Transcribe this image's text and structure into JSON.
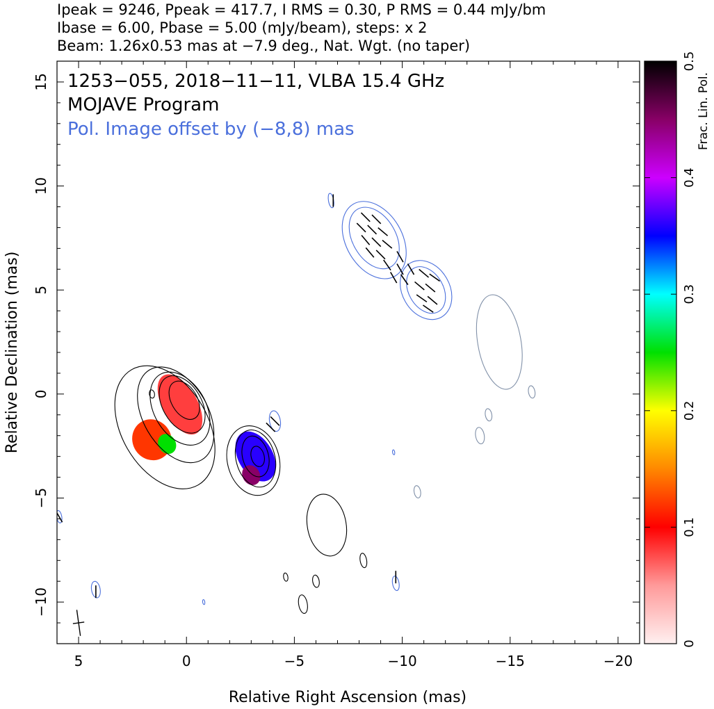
{
  "header": {
    "line1": "Ipeak = 9246, Ppeak = 417.7, I RMS = 0.30, P RMS = 0.44 mJy/bm",
    "line2": "Ibase = 6.00, Pbase = 5.00 (mJy/beam), steps: x 2",
    "line3": "Beam: 1.26x0.53 mas at −7.9 deg., Nat. Wgt. (no taper)"
  },
  "annotations": {
    "source": "1253−055, 2018−11−11, VLBA 15.4 GHz",
    "program": "MOJAVE Program",
    "offset_note": "Pol. Image offset by (−8,8) mas"
  },
  "colors": {
    "stokes_i_contour": "#000000",
    "pol_contour": "#4a6fdc",
    "offset_contour": "#8090a8",
    "offset_note": "#4a6fdc"
  },
  "chart_data": {
    "type": "heatmap",
    "title": "1253−055, 2018−11−11, VLBA 15.4 GHz",
    "xlabel": "Relative Right Ascension (mas)",
    "ylabel": "Relative Declination (mas)",
    "xlim": [
      6,
      -21
    ],
    "ylim": [
      -12,
      16
    ],
    "x_ticks": [
      5,
      0,
      -5,
      -10,
      -15,
      -20
    ],
    "x_tick_labels": [
      "5",
      "0",
      "−5",
      "−10",
      "−15",
      "−20"
    ],
    "y_ticks": [
      15,
      10,
      5,
      0,
      -5,
      -10
    ],
    "y_tick_labels": [
      "15",
      "10",
      "5",
      "0",
      "−5",
      "−10"
    ],
    "colorbar": {
      "label": "Frac. Lin. Pol.",
      "range": [
        0,
        0.5
      ],
      "ticks": [
        0,
        0.1,
        0.2,
        0.3,
        0.4,
        0.5
      ],
      "tick_labels": [
        "0",
        "0.1",
        "0.2",
        "0.3",
        "0.4",
        "0.5"
      ],
      "stops": [
        "#fff0f0",
        "#ff9a9a",
        "#ff0000",
        "#ff8800",
        "#ffff00",
        "#00e000",
        "#00ffff",
        "#0000ff",
        "#cc00ff",
        "#880066",
        "#000000"
      ]
    },
    "stokes_i_core_contours": [
      {
        "x": 0.1,
        "y": -0.3,
        "rx": 0.6,
        "ry": 1.0
      },
      {
        "x": 0.2,
        "y": -0.5,
        "rx": 0.9,
        "ry": 1.5
      },
      {
        "x": 0.3,
        "y": -0.7,
        "rx": 1.2,
        "ry": 1.9
      },
      {
        "x": 0.5,
        "y": -1.0,
        "rx": 1.5,
        "ry": 2.5
      },
      {
        "x": 1.0,
        "y": -1.6,
        "rx": 2.0,
        "ry": 3.2
      }
    ],
    "stokes_i_component_contours": [
      {
        "x": -3.3,
        "y": -3.0,
        "rx": 0.3,
        "ry": 0.5
      },
      {
        "x": -3.2,
        "y": -3.0,
        "rx": 0.6,
        "ry": 1.0
      },
      {
        "x": -3.2,
        "y": -3.1,
        "rx": 0.9,
        "ry": 1.4
      },
      {
        "x": -3.1,
        "y": -3.2,
        "rx": 1.2,
        "ry": 1.7
      }
    ],
    "pol_offset_contours": [
      {
        "x": -8.7,
        "y": 7.5,
        "rx": 1.0,
        "ry": 1.6
      },
      {
        "x": -8.7,
        "y": 7.4,
        "rx": 1.3,
        "ry": 2.0
      },
      {
        "x": -11.1,
        "y": 5.0,
        "rx": 0.8,
        "ry": 1.2
      },
      {
        "x": -11.1,
        "y": 5.0,
        "rx": 1.1,
        "ry": 1.5
      }
    ],
    "fractional_pol_blobs": [
      {
        "x": 0.3,
        "y": -0.5,
        "rx": 0.8,
        "ry": 1.6,
        "fpol": 0.08
      },
      {
        "x": 1.6,
        "y": -2.2,
        "rx": 0.9,
        "ry": 1.0,
        "fpol": 0.12
      },
      {
        "x": 0.9,
        "y": -2.4,
        "rx": 0.4,
        "ry": 0.5,
        "fpol": 0.25
      },
      {
        "x": -3.2,
        "y": -3.0,
        "rx": 0.8,
        "ry": 1.3,
        "fpol": 0.36
      },
      {
        "x": -3.0,
        "y": -3.9,
        "rx": 0.4,
        "ry": 0.5,
        "fpol": 0.45
      }
    ],
    "weak_i_islands": [
      {
        "x": -6.5,
        "y": -6.3,
        "rx": 0.9,
        "ry": 1.5
      },
      {
        "x": -8.2,
        "y": -8.0,
        "rx": 0.15,
        "ry": 0.35
      },
      {
        "x": -6.0,
        "y": -9.0,
        "rx": 0.15,
        "ry": 0.3
      },
      {
        "x": -5.4,
        "y": -10.1,
        "rx": 0.2,
        "ry": 0.45
      },
      {
        "x": -4.6,
        "y": -8.8,
        "rx": 0.1,
        "ry": 0.2
      },
      {
        "x": 1.6,
        "y": 0.0,
        "rx": 0.12,
        "ry": 0.2
      }
    ],
    "offset_islands": [
      {
        "x": -14.5,
        "y": 2.5,
        "rx": 1.0,
        "ry": 2.3
      },
      {
        "x": -16.0,
        "y": 0.1,
        "rx": 0.15,
        "ry": 0.3
      },
      {
        "x": -13.6,
        "y": -2.0,
        "rx": 0.2,
        "ry": 0.4
      },
      {
        "x": -14.0,
        "y": -1.0,
        "rx": 0.15,
        "ry": 0.3
      },
      {
        "x": -10.7,
        "y": -4.7,
        "rx": 0.15,
        "ry": 0.3
      }
    ],
    "pol_islands": [
      {
        "x": 4.2,
        "y": -9.4,
        "rx": 0.2,
        "ry": 0.4
      },
      {
        "x": 5.9,
        "y": -5.9,
        "rx": 0.12,
        "ry": 0.3
      },
      {
        "x": -9.7,
        "y": -9.1,
        "rx": 0.15,
        "ry": 0.35
      },
      {
        "x": -6.7,
        "y": 9.3,
        "rx": 0.12,
        "ry": 0.35
      },
      {
        "x": -9.6,
        "y": -2.8,
        "rx": 0.05,
        "ry": 0.12
      },
      {
        "x": -0.8,
        "y": -10.0,
        "rx": 0.05,
        "ry": 0.12
      },
      {
        "x": -4.1,
        "y": -1.3,
        "rx": 0.25,
        "ry": 0.5
      }
    ],
    "evpa_ticks": [
      {
        "x": -8.3,
        "y": 8.5,
        "angle_deg": 135
      },
      {
        "x": -8.8,
        "y": 8.4,
        "angle_deg": 135
      },
      {
        "x": -8.1,
        "y": 8.0,
        "angle_deg": 135
      },
      {
        "x": -8.6,
        "y": 7.9,
        "angle_deg": 135
      },
      {
        "x": -9.1,
        "y": 7.8,
        "angle_deg": 140
      },
      {
        "x": -8.3,
        "y": 7.4,
        "angle_deg": 130
      },
      {
        "x": -8.8,
        "y": 7.3,
        "angle_deg": 135
      },
      {
        "x": -9.3,
        "y": 7.2,
        "angle_deg": 140
      },
      {
        "x": -8.5,
        "y": 6.8,
        "angle_deg": 130
      },
      {
        "x": -9.0,
        "y": 6.7,
        "angle_deg": 135
      },
      {
        "x": -9.9,
        "y": 6.6,
        "angle_deg": 120
      },
      {
        "x": -9.3,
        "y": 6.2,
        "angle_deg": 125
      },
      {
        "x": -9.9,
        "y": 6.0,
        "angle_deg": 120
      },
      {
        "x": -10.4,
        "y": 6.0,
        "angle_deg": 120
      },
      {
        "x": -9.6,
        "y": 5.6,
        "angle_deg": 120
      },
      {
        "x": -10.1,
        "y": 5.5,
        "angle_deg": 125
      },
      {
        "x": -11.0,
        "y": 5.8,
        "angle_deg": 140
      },
      {
        "x": -11.5,
        "y": 5.6,
        "angle_deg": 145
      },
      {
        "x": -10.8,
        "y": 5.2,
        "angle_deg": 140
      },
      {
        "x": -11.3,
        "y": 5.1,
        "angle_deg": 140
      },
      {
        "x": -10.9,
        "y": 4.6,
        "angle_deg": 145
      },
      {
        "x": -11.4,
        "y": 4.5,
        "angle_deg": 140
      },
      {
        "x": -11.2,
        "y": 4.1,
        "angle_deg": 145
      },
      {
        "x": -6.8,
        "y": 9.3,
        "angle_deg": 90
      },
      {
        "x": -4.1,
        "y": -1.3,
        "angle_deg": 135
      },
      {
        "x": -3.9,
        "y": -1.6,
        "angle_deg": 135
      },
      {
        "x": 4.2,
        "y": -9.5,
        "angle_deg": 90
      },
      {
        "x": 5.9,
        "y": -5.9,
        "angle_deg": 120
      },
      {
        "x": -9.7,
        "y": -8.8,
        "angle_deg": 90
      }
    ],
    "beam": {
      "x": 5.0,
      "y": -11.0,
      "major_mas": 1.26,
      "minor_mas": 0.53,
      "pa_deg": -7.9
    }
  }
}
